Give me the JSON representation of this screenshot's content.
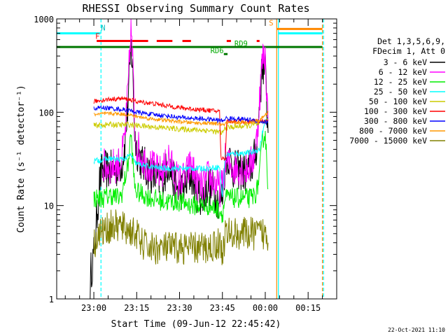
{
  "chart_data": {
    "type": "line",
    "title": "RHESSI Observing Summary Count Rates",
    "xlabel": "Start Time (09-Jun-12 22:45:42)",
    "ylabel": "Count Rate (s⁻¹ detector⁻¹)",
    "yscale": "log",
    "ylim": [
      1,
      1000
    ],
    "xlim_minutes": [
      -13,
      85
    ],
    "x_ticks": [
      {
        "label": "23:00",
        "m": 0
      },
      {
        "label": "23:15",
        "m": 15
      },
      {
        "label": "23:30",
        "m": 30
      },
      {
        "label": "23:45",
        "m": 45
      },
      {
        "label": "00:00",
        "m": 60
      },
      {
        "label": "00:15",
        "m": 75
      }
    ],
    "y_ticks": [
      {
        "label": "1",
        "v": 1
      },
      {
        "label": "10",
        "v": 10
      },
      {
        "label": "100",
        "v": 100
      },
      {
        "label": "1000",
        "v": 1000
      }
    ],
    "legend_header": [
      "Det 1,3,5,6,9,",
      "FDecim 1, Att 0"
    ],
    "legend_position": "right",
    "series": [
      {
        "name": "3 - 6 keV",
        "color": "#000000",
        "points": [
          [
            -1.3,
            1
          ],
          [
            -1,
            2
          ],
          [
            0,
            3
          ],
          [
            1,
            7
          ],
          [
            2,
            18
          ],
          [
            3,
            24
          ],
          [
            6,
            24
          ],
          [
            9,
            26
          ],
          [
            10,
            30
          ],
          [
            11,
            50
          ],
          [
            12,
            130
          ],
          [
            13,
            500
          ],
          [
            13.6,
            280
          ],
          [
            14.3,
            60
          ],
          [
            15,
            40
          ],
          [
            17,
            28
          ],
          [
            20,
            22
          ],
          [
            23,
            18
          ],
          [
            25,
            22
          ],
          [
            26,
            30
          ],
          [
            28,
            18
          ],
          [
            30,
            14
          ],
          [
            32,
            16
          ],
          [
            34,
            22
          ],
          [
            36,
            14
          ],
          [
            38,
            12
          ],
          [
            40,
            17
          ],
          [
            42,
            14
          ],
          [
            44,
            11
          ],
          [
            45,
            13
          ],
          [
            46,
            30
          ],
          [
            47,
            35
          ],
          [
            49,
            24
          ],
          [
            51,
            24
          ],
          [
            53,
            22
          ],
          [
            55,
            26
          ],
          [
            56,
            30
          ],
          [
            57,
            45
          ],
          [
            58,
            120
          ],
          [
            59,
            330
          ],
          [
            60,
            280
          ],
          [
            61,
            60
          ]
        ]
      },
      {
        "name": "6 - 12 keV",
        "color": "#ff00ff",
        "points": [
          [
            3,
            26
          ],
          [
            6,
            26
          ],
          [
            9,
            28
          ],
          [
            10,
            36
          ],
          [
            11,
            60
          ],
          [
            12,
            180
          ],
          [
            13,
            850
          ],
          [
            13.6,
            350
          ],
          [
            14.3,
            70
          ],
          [
            15,
            45
          ],
          [
            17,
            32
          ],
          [
            20,
            26
          ],
          [
            23,
            22
          ],
          [
            25,
            26
          ],
          [
            26,
            35
          ],
          [
            28,
            22
          ],
          [
            30,
            18
          ],
          [
            32,
            20
          ],
          [
            34,
            28
          ],
          [
            36,
            18
          ],
          [
            38,
            15
          ],
          [
            40,
            20
          ],
          [
            42,
            18
          ],
          [
            44,
            15
          ],
          [
            45,
            16
          ],
          [
            46,
            30
          ],
          [
            47,
            28
          ],
          [
            49,
            25
          ],
          [
            51,
            26
          ],
          [
            53,
            24
          ],
          [
            55,
            28
          ],
          [
            56,
            34
          ],
          [
            57,
            50
          ],
          [
            58,
            140
          ],
          [
            59,
            380
          ],
          [
            60,
            400
          ],
          [
            61,
            80
          ]
        ]
      },
      {
        "name": "12 - 25 keV",
        "color": "#00ee00",
        "points": [
          [
            0,
            12
          ],
          [
            3,
            12
          ],
          [
            6,
            13
          ],
          [
            9,
            12
          ],
          [
            10,
            14
          ],
          [
            11,
            20
          ],
          [
            12,
            28
          ],
          [
            13,
            60
          ],
          [
            13.6,
            30
          ],
          [
            14.3,
            16
          ],
          [
            15,
            14
          ],
          [
            20,
            12
          ],
          [
            25,
            11
          ],
          [
            30,
            11
          ],
          [
            35,
            10
          ],
          [
            40,
            10
          ],
          [
            44,
            9
          ],
          [
            45,
            8
          ],
          [
            46,
            12
          ],
          [
            50,
            12
          ],
          [
            55,
            12
          ],
          [
            57,
            14
          ],
          [
            58,
            22
          ],
          [
            59,
            50
          ],
          [
            60,
            60
          ],
          [
            61,
            15
          ]
        ]
      },
      {
        "name": "25 - 50 keV",
        "color": "#00ffff",
        "points": [
          [
            0,
            30
          ],
          [
            3,
            31
          ],
          [
            6,
            32
          ],
          [
            9,
            31
          ],
          [
            11,
            32
          ],
          [
            13,
            35
          ],
          [
            14,
            30
          ],
          [
            15,
            28
          ],
          [
            20,
            26
          ],
          [
            25,
            25
          ],
          [
            30,
            25
          ],
          [
            35,
            25
          ],
          [
            40,
            25
          ],
          [
            44,
            26
          ],
          [
            45,
            12
          ],
          [
            46,
            35
          ],
          [
            50,
            36
          ],
          [
            55,
            37
          ],
          [
            58,
            40
          ],
          [
            59,
            60
          ],
          [
            60,
            80
          ],
          [
            61,
            85
          ]
        ]
      },
      {
        "name": "50 - 100 keV",
        "color": "#cccc00",
        "points": [
          [
            0,
            72
          ],
          [
            3,
            73
          ],
          [
            6,
            74
          ],
          [
            9,
            73
          ],
          [
            12,
            74
          ],
          [
            15,
            72
          ],
          [
            20,
            70
          ],
          [
            25,
            68
          ],
          [
            30,
            66
          ],
          [
            35,
            65
          ],
          [
            40,
            64
          ],
          [
            45,
            60
          ],
          [
            46,
            68
          ],
          [
            50,
            70
          ],
          [
            55,
            72
          ],
          [
            58,
            75
          ],
          [
            60,
            80
          ],
          [
            61,
            82
          ]
        ]
      },
      {
        "name": "100 - 300 keV",
        "color": "#ff0000",
        "points": [
          [
            0,
            130
          ],
          [
            3,
            135
          ],
          [
            6,
            138
          ],
          [
            9,
            140
          ],
          [
            12,
            138
          ],
          [
            15,
            130
          ],
          [
            20,
            125
          ],
          [
            25,
            118
          ],
          [
            30,
            112
          ],
          [
            35,
            108
          ],
          [
            40,
            105
          ],
          [
            44,
            102
          ],
          [
            44.5,
            32
          ],
          [
            46,
            32
          ],
          [
            46.5,
            80
          ],
          [
            50,
            80
          ],
          [
            55,
            80
          ],
          [
            58,
            80
          ],
          [
            60,
            80
          ],
          [
            61,
            80
          ]
        ]
      },
      {
        "name": "300 - 800 keV",
        "color": "#0000ff",
        "points": [
          [
            0,
            110
          ],
          [
            3,
            112
          ],
          [
            6,
            110
          ],
          [
            9,
            108
          ],
          [
            12,
            105
          ],
          [
            15,
            100
          ],
          [
            20,
            95
          ],
          [
            25,
            92
          ],
          [
            30,
            88
          ],
          [
            35,
            86
          ],
          [
            40,
            84
          ],
          [
            44,
            82
          ],
          [
            45,
            80
          ],
          [
            46,
            86
          ],
          [
            50,
            85
          ],
          [
            55,
            83
          ],
          [
            58,
            80
          ],
          [
            60,
            78
          ],
          [
            61,
            78
          ]
        ]
      },
      {
        "name": "800 - 7000 keV",
        "color": "#ff9900",
        "points": [
          [
            0,
            95
          ],
          [
            3,
            96
          ],
          [
            6,
            97
          ],
          [
            9,
            96
          ],
          [
            12,
            94
          ],
          [
            15,
            90
          ],
          [
            20,
            85
          ],
          [
            25,
            82
          ],
          [
            30,
            79
          ],
          [
            35,
            77
          ],
          [
            40,
            76
          ],
          [
            44,
            75
          ],
          [
            45,
            72
          ],
          [
            46,
            76
          ],
          [
            50,
            77
          ],
          [
            55,
            78
          ],
          [
            58,
            82
          ],
          [
            60,
            95
          ],
          [
            61,
            100
          ]
        ]
      },
      {
        "name": "7000 - 15000 keV",
        "color": "#808000",
        "points": [
          [
            0,
            4
          ],
          [
            1,
            4.5
          ],
          [
            2,
            5
          ],
          [
            4,
            5.5
          ],
          [
            6,
            6
          ],
          [
            9,
            6
          ],
          [
            12,
            5.5
          ],
          [
            15,
            5
          ],
          [
            16,
            4
          ],
          [
            20,
            3.5
          ],
          [
            25,
            3.5
          ],
          [
            30,
            3.5
          ],
          [
            35,
            3.5
          ],
          [
            40,
            3.5
          ],
          [
            44,
            4
          ],
          [
            45,
            3
          ],
          [
            46,
            5
          ],
          [
            50,
            5
          ],
          [
            55,
            5
          ],
          [
            58,
            5
          ],
          [
            60,
            5
          ],
          [
            61,
            4
          ]
        ]
      }
    ],
    "annotations": [
      {
        "text": "N",
        "color": "#00bbbb",
        "m": 2.5,
        "v": 750
      },
      {
        "text": "F",
        "color": "#ff0000",
        "m": 0.5,
        "v": 610
      },
      {
        "text": "S",
        "color": "#ff8800",
        "m": 61.3,
        "v": 850
      },
      {
        "text": "RD9",
        "color": "#00aa00",
        "m": 49.2,
        "v": 510
      },
      {
        "text": "RD6",
        "color": "#00aa00",
        "m": 40.8,
        "v": 430
      }
    ],
    "state_bars": [
      {
        "name": "night",
        "color": "#00ffff",
        "segments": [
          [
            -13,
            2.3
          ],
          [
            64.5,
            80
          ]
        ],
        "v": 700
      },
      {
        "name": "flare",
        "color": "#ff0000",
        "segments": [
          [
            1,
            19
          ],
          [
            22,
            27.5
          ],
          [
            31,
            34
          ],
          [
            46.5,
            48
          ],
          [
            57,
            58
          ]
        ],
        "v": 580
      },
      {
        "name": "saa",
        "color": "#ff8800",
        "segments": [
          [
            64,
            80
          ]
        ],
        "v": 780
      },
      {
        "name": "decimation",
        "color": "#007700",
        "segments": [
          [
            -13,
            80
          ]
        ],
        "v": 500
      },
      {
        "name": "rd6",
        "color": "#007700",
        "segments": [
          [
            45.5,
            46.8
          ]
        ],
        "v": 420
      }
    ],
    "vlines": [
      {
        "m": 2.5,
        "color": "#00ffff",
        "style": "dashed"
      },
      {
        "m": 64,
        "color": "#ff8800",
        "style": "solid"
      },
      {
        "m": 64.6,
        "color": "#00ffff",
        "style": "solid"
      },
      {
        "m": 80,
        "color": "#ff8800",
        "style": "dashed"
      },
      {
        "m": 80.4,
        "color": "#00ffff",
        "style": "dashed"
      }
    ]
  },
  "footer": {
    "date": "22-Oct-2021 11:10"
  }
}
